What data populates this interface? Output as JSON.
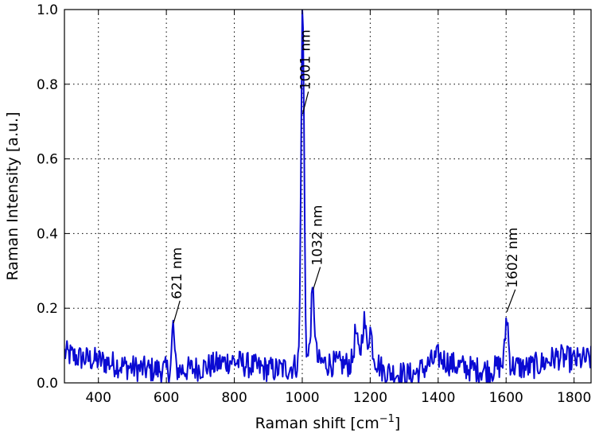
{
  "chart_data": {
    "type": "line",
    "xlabel": "Raman shift [cm",
    "xlabel_sup": "−1",
    "xlabel_end": "]",
    "ylabel": "Raman Intensity [a.u.]",
    "xlim": [
      300,
      1850
    ],
    "ylim": [
      0.0,
      1.0
    ],
    "xticks": [
      400,
      600,
      800,
      1000,
      1200,
      1400,
      1600,
      1800
    ],
    "xtick_labels": [
      "400",
      "600",
      "800",
      "1000",
      "1200",
      "1400",
      "1600",
      "1800"
    ],
    "yticks": [
      0.0,
      0.2,
      0.4,
      0.6,
      0.8,
      1.0
    ],
    "ytick_labels": [
      "0.0",
      "0.2",
      "0.4",
      "0.6",
      "0.8",
      "1.0"
    ],
    "grid": true,
    "series_color": "#0a0ad2",
    "series": [
      {
        "baseline": [
          [
            300,
            0.08
          ],
          [
            330,
            0.07
          ],
          [
            360,
            0.065
          ],
          [
            400,
            0.06
          ],
          [
            450,
            0.05
          ],
          [
            500,
            0.04
          ],
          [
            550,
            0.035
          ],
          [
            600,
            0.035
          ],
          [
            650,
            0.035
          ],
          [
            700,
            0.04
          ],
          [
            750,
            0.05
          ],
          [
            790,
            0.06
          ],
          [
            830,
            0.05
          ],
          [
            870,
            0.04
          ],
          [
            920,
            0.035
          ],
          [
            960,
            0.04
          ],
          [
            990,
            0.05
          ],
          [
            1010,
            0.06
          ],
          [
            1050,
            0.055
          ],
          [
            1100,
            0.05
          ],
          [
            1140,
            0.05
          ],
          [
            1170,
            0.08
          ],
          [
            1210,
            0.07
          ],
          [
            1240,
            0.03
          ],
          [
            1280,
            0.025
          ],
          [
            1320,
            0.02
          ],
          [
            1360,
            0.04
          ],
          [
            1400,
            0.07
          ],
          [
            1440,
            0.05
          ],
          [
            1480,
            0.04
          ],
          [
            1520,
            0.035
          ],
          [
            1560,
            0.035
          ],
          [
            1590,
            0.05
          ],
          [
            1620,
            0.045
          ],
          [
            1660,
            0.04
          ],
          [
            1700,
            0.05
          ],
          [
            1750,
            0.07
          ],
          [
            1800,
            0.06
          ],
          [
            1850,
            0.065
          ]
        ],
        "peaks": [
          {
            "center": 620,
            "height": 0.12,
            "width": 3.5
          },
          {
            "center": 1001,
            "height": 0.95,
            "width": 4.5
          },
          {
            "center": 1031,
            "height": 0.18,
            "width": 5.5
          },
          {
            "center": 1157,
            "height": 0.07,
            "width": 4
          },
          {
            "center": 1182,
            "height": 0.09,
            "width": 5
          },
          {
            "center": 1200,
            "height": 0.07,
            "width": 5
          },
          {
            "center": 1602,
            "height": 0.13,
            "width": 4.5
          }
        ],
        "noise_amplitude": 0.035
      }
    ],
    "annotations": [
      {
        "label": "621 nm",
        "x": 621,
        "y": 0.16,
        "text_x": 640,
        "text_y": 0.22
      },
      {
        "label": "1001 nm",
        "x": 1001,
        "y": 0.72,
        "text_x": 1018,
        "text_y": 0.78
      },
      {
        "label": "1032 nm",
        "x": 1032,
        "y": 0.25,
        "text_x": 1053,
        "text_y": 0.31
      },
      {
        "label": "1602 nm",
        "x": 1602,
        "y": 0.19,
        "text_x": 1627,
        "text_y": 0.25
      }
    ]
  }
}
